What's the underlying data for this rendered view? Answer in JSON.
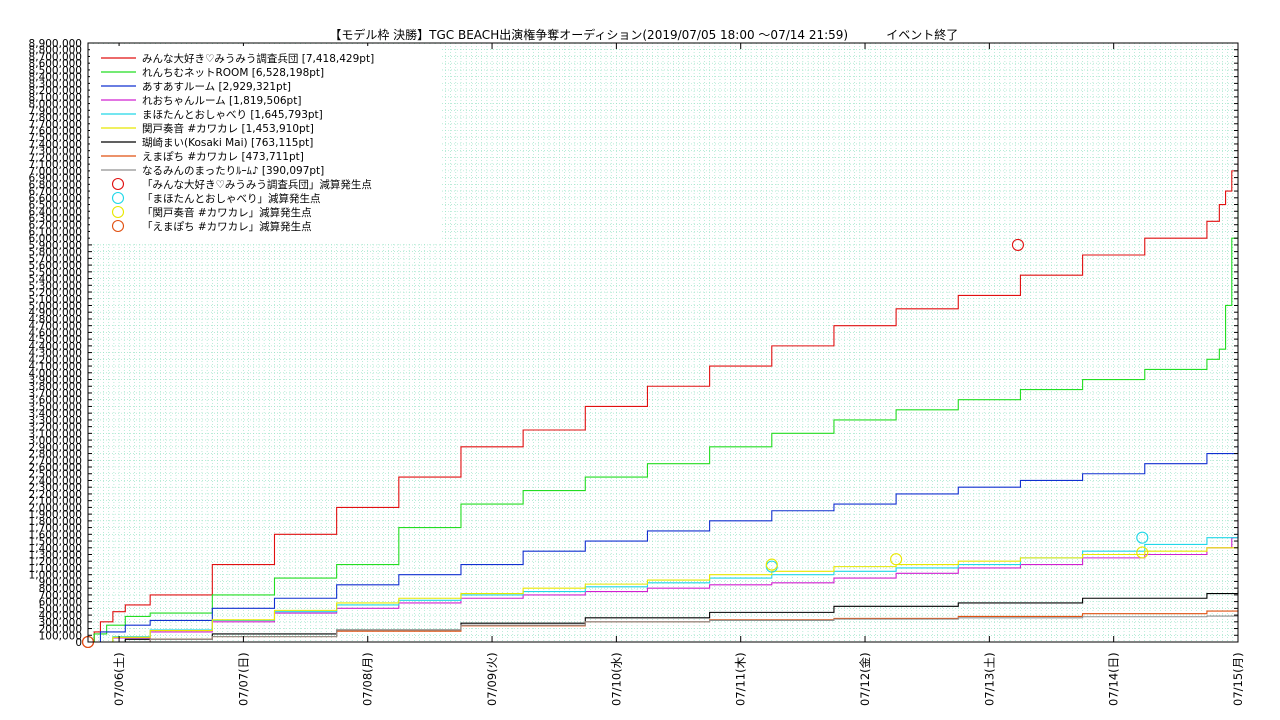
{
  "header": {
    "title": "【モデル枠 決勝】TGC BEACH出演権争奪オーディション(2019/07/05 18:00 ～07/14 21:59)",
    "status": "イベント終了"
  },
  "chart_data": {
    "type": "line",
    "title": "【モデル枠 決勝】TGC BEACH出演権争奪オーディション(2019/07/05 18:00 ～07/14 21:59)",
    "xlabel": "",
    "ylabel": "",
    "xlim": [
      "2019-07-05 18:00",
      "2019-07-15 00:00"
    ],
    "ylim": [
      0,
      8900000
    ],
    "ytick_step": 100000,
    "x_tick_labels": [
      "07/06(土)",
      "07/07(日)",
      "07/08(月)",
      "07/09(火)",
      "07/10(水)",
      "07/11(木)",
      "07/12(金)",
      "07/13(土)",
      "07/14(日)",
      "07/15(月)"
    ],
    "x_tick_days": [
      0.25,
      1.25,
      2.25,
      3.25,
      4.25,
      5.25,
      6.25,
      7.25,
      8.25,
      9.25
    ],
    "grid": true,
    "legend_position": "top-left",
    "series": [
      {
        "name": "みんな大好き♡みうみう調査兵団 [7,418,429pt]",
        "color": "#e01010",
        "x": [
          0,
          0.05,
          0.1,
          0.2,
          0.3,
          0.5,
          1.0,
          1.5,
          2.0,
          2.5,
          3.0,
          3.5,
          4.0,
          4.5,
          5.0,
          5.5,
          6.0,
          6.5,
          7.0,
          7.5,
          8.0,
          8.5,
          9.0,
          9.1,
          9.15,
          9.2,
          9.25
        ],
        "y": [
          0,
          150000,
          300000,
          450000,
          550000,
          700000,
          1150000,
          1600000,
          2000000,
          2450000,
          2900000,
          3150000,
          3500000,
          3800000,
          4100000,
          4400000,
          4700000,
          4950000,
          5150000,
          5450000,
          5750000,
          6000000,
          6250000,
          6500000,
          6700000,
          7000000,
          7418429
        ]
      },
      {
        "name": "れんちむネットROOM [6,528,198pt]",
        "color": "#22dd22",
        "x": [
          0,
          0.05,
          0.15,
          0.3,
          0.5,
          1.0,
          1.5,
          2.0,
          2.5,
          3.0,
          3.5,
          4.0,
          4.5,
          5.0,
          5.5,
          6.0,
          6.5,
          7.0,
          7.5,
          8.0,
          8.5,
          9.0,
          9.1,
          9.15,
          9.2,
          9.25
        ],
        "y": [
          0,
          120000,
          250000,
          380000,
          430000,
          700000,
          950000,
          1150000,
          1700000,
          2050000,
          2250000,
          2450000,
          2650000,
          2900000,
          3100000,
          3300000,
          3450000,
          3600000,
          3750000,
          3900000,
          4050000,
          4200000,
          4350000,
          5000000,
          6000000,
          6528198
        ]
      },
      {
        "name": "あすあすルーム [2,929,321pt]",
        "color": "#1030d0",
        "x": [
          0,
          0.1,
          0.3,
          0.5,
          1.0,
          1.5,
          2.0,
          2.5,
          3.0,
          3.5,
          4.0,
          4.5,
          5.0,
          5.5,
          6.0,
          6.5,
          7.0,
          7.5,
          8.0,
          8.5,
          9.0,
          9.25
        ],
        "y": [
          0,
          150000,
          250000,
          320000,
          500000,
          650000,
          850000,
          1000000,
          1150000,
          1350000,
          1500000,
          1650000,
          1800000,
          1950000,
          2050000,
          2200000,
          2300000,
          2400000,
          2500000,
          2650000,
          2800000,
          2929321
        ]
      },
      {
        "name": "れおちゃんルーム [1,819,506pt]",
        "color": "#d020d0",
        "x": [
          0,
          0.2,
          0.5,
          1.0,
          1.5,
          2.0,
          2.5,
          3.0,
          3.5,
          4.0,
          4.5,
          5.0,
          5.5,
          6.0,
          6.5,
          7.0,
          7.5,
          8.0,
          8.5,
          9.0,
          9.2,
          9.25
        ],
        "y": [
          0,
          60000,
          150000,
          300000,
          430000,
          500000,
          580000,
          650000,
          700000,
          750000,
          800000,
          850000,
          880000,
          950000,
          1020000,
          1100000,
          1150000,
          1250000,
          1300000,
          1400000,
          1550000,
          1819506
        ]
      },
      {
        "name": "まほたんとおしゃべり [1,645,793pt]",
        "color": "#20d8e8",
        "x": [
          0,
          0.2,
          0.5,
          1.0,
          1.5,
          2.0,
          2.5,
          3.0,
          3.5,
          4.0,
          4.5,
          5.0,
          5.5,
          6.0,
          6.5,
          7.0,
          7.5,
          8.0,
          8.5,
          9.0,
          9.25
        ],
        "y": [
          0,
          80000,
          180000,
          320000,
          450000,
          550000,
          620000,
          700000,
          750000,
          820000,
          880000,
          950000,
          1000000,
          1050000,
          1100000,
          1150000,
          1250000,
          1350000,
          1450000,
          1550000,
          1645793
        ]
      },
      {
        "name": "関戸奏音 #カワカレ [1,453,910pt]",
        "color": "#e8e800",
        "x": [
          0,
          0.2,
          0.5,
          1.0,
          1.5,
          2.0,
          2.5,
          3.0,
          3.5,
          4.0,
          4.5,
          5.0,
          5.5,
          6.0,
          6.5,
          7.0,
          7.5,
          8.0,
          8.5,
          9.0,
          9.25
        ],
        "y": [
          0,
          70000,
          170000,
          330000,
          470000,
          580000,
          650000,
          720000,
          800000,
          860000,
          920000,
          1000000,
          1050000,
          1120000,
          1150000,
          1200000,
          1250000,
          1300000,
          1350000,
          1400000,
          1453910
        ]
      },
      {
        "name": "瑚崎まい(Kosaki Mai) [763,115pt]",
        "color": "#000000",
        "x": [
          0,
          0.3,
          1.0,
          2.0,
          3.0,
          4.0,
          5.0,
          6.0,
          7.0,
          8.0,
          9.0,
          9.25
        ],
        "y": [
          0,
          40000,
          120000,
          180000,
          280000,
          360000,
          440000,
          530000,
          580000,
          650000,
          720000,
          763115
        ]
      },
      {
        "name": "えまぽち #カワカレ [473,711pt]",
        "color": "#e05010",
        "x": [
          0,
          0.5,
          1.0,
          2.0,
          3.0,
          4.0,
          5.0,
          6.0,
          7.0,
          8.0,
          9.0,
          9.25
        ],
        "y": [
          0,
          40000,
          80000,
          160000,
          240000,
          300000,
          330000,
          350000,
          380000,
          420000,
          460000,
          473711
        ]
      },
      {
        "name": "なるみんのまったりﾙｰﾑ♪ [390,097pt]",
        "color": "#909090",
        "x": [
          0,
          0.5,
          1.0,
          2.0,
          3.0,
          4.0,
          5.0,
          6.0,
          7.0,
          8.0,
          9.0,
          9.25
        ],
        "y": [
          0,
          40000,
          80000,
          180000,
          250000,
          300000,
          320000,
          340000,
          360000,
          375000,
          385000,
          390097
        ]
      }
    ],
    "markers": [
      {
        "name": "「みんな大好き♡みうみう調査兵団」減算発生点",
        "color": "#e01010",
        "points": [
          {
            "x": 0.0,
            "y": 0
          },
          {
            "x": 7.48,
            "y": 5900000
          }
        ]
      },
      {
        "name": "「まほたんとおしゃべり」減算発生点",
        "color": "#20d8e8",
        "points": [
          {
            "x": 5.5,
            "y": 1120000
          },
          {
            "x": 8.48,
            "y": 1550000
          }
        ]
      },
      {
        "name": "「関戸奏音 #カワカレ」減算発生点",
        "color": "#e8e800",
        "points": [
          {
            "x": 5.5,
            "y": 1150000
          },
          {
            "x": 6.5,
            "y": 1230000
          },
          {
            "x": 8.48,
            "y": 1330000
          }
        ]
      },
      {
        "name": "「えまぽち #カワカレ」減算発生点",
        "color": "#e05010",
        "points": [
          {
            "x": 0.0,
            "y": 0
          }
        ]
      }
    ]
  }
}
